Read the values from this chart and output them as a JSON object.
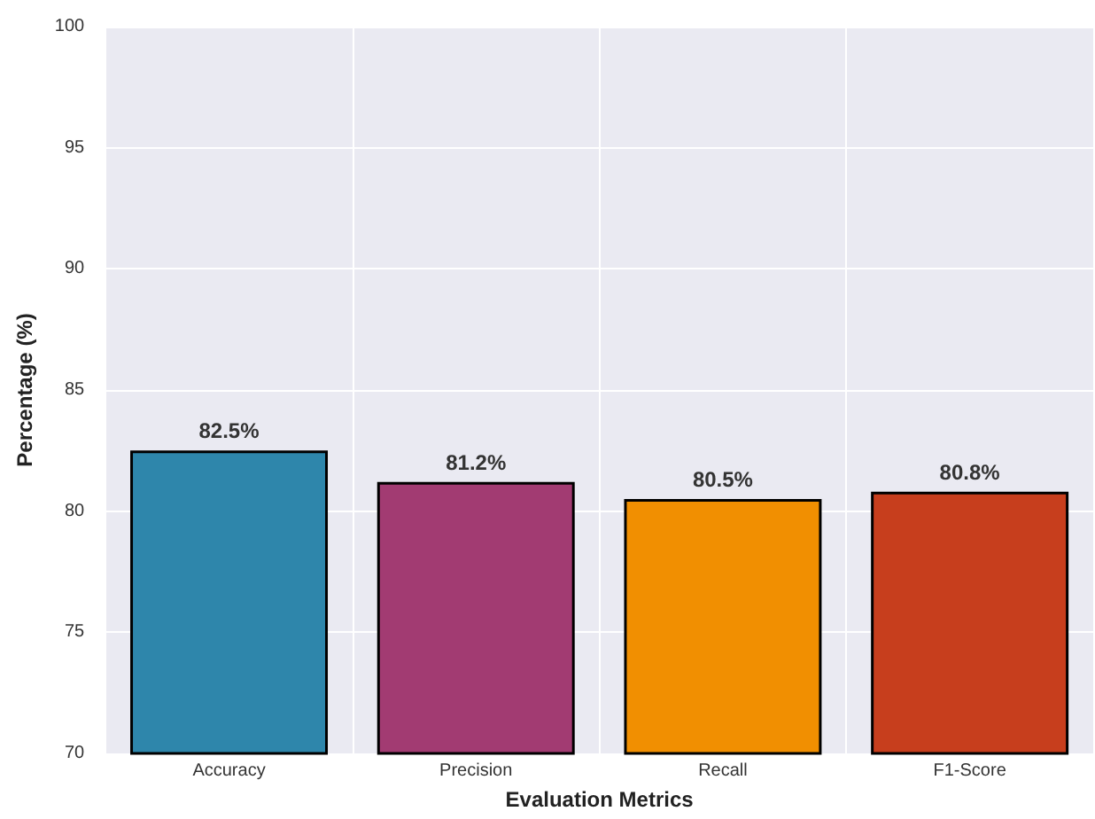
{
  "chart_data": {
    "type": "bar",
    "xlabel": "Evaluation Metrics",
    "ylabel": "Percentage (%)",
    "categories": [
      "Accuracy",
      "Precision",
      "Recall",
      "F1-Score"
    ],
    "values": [
      82.5,
      81.2,
      80.5,
      80.8
    ],
    "colors": [
      "#2e86ab",
      "#a23b72",
      "#f18f01",
      "#c73e1d"
    ],
    "value_labels": [
      "82.5%",
      "81.2%",
      "80.5%",
      "80.8%"
    ],
    "ylim": [
      70,
      100
    ],
    "yticks": [
      70,
      75,
      80,
      85,
      90,
      95,
      100
    ],
    "grid": true
  }
}
